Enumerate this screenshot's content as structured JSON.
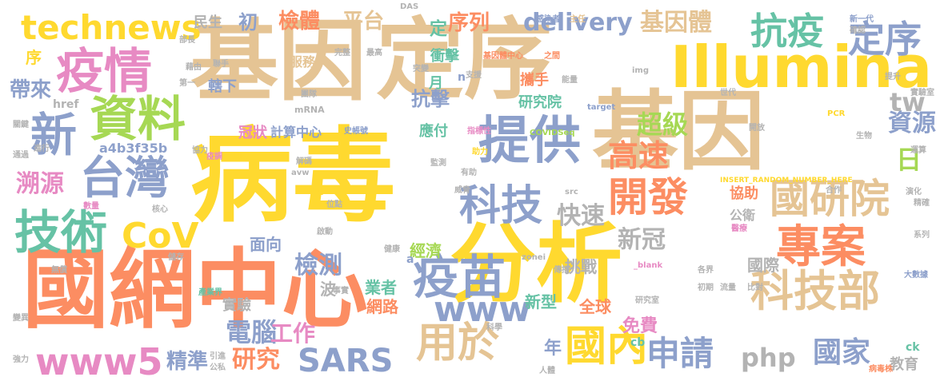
{
  "colors": {
    "tan": "#e5c494",
    "yellow": "#ffd92f",
    "orange": "#fc8d62",
    "blue": "#8da0cb",
    "green": "#66c2a5",
    "pink": "#e78ac3",
    "lime": "#a6d854",
    "gray": "#b3b3b3"
  },
  "words": [
    {
      "t": "病毒",
      "c": "yellow"
    },
    {
      "t": "基因",
      "c": "tan"
    },
    {
      "t": "定序",
      "c": "tan"
    },
    {
      "t": "基因",
      "c": "tan"
    },
    {
      "t": "國網中心",
      "c": "orange"
    },
    {
      "t": "分析",
      "c": "yellow"
    },
    {
      "t": "Illumina",
      "c": "yellow"
    },
    {
      "t": "疫情",
      "c": "pink"
    },
    {
      "t": "資料",
      "c": "lime"
    },
    {
      "t": "提供",
      "c": "blue"
    },
    {
      "t": "技術",
      "c": "green"
    },
    {
      "t": "台灣",
      "c": "blue"
    },
    {
      "t": "新",
      "c": "blue"
    },
    {
      "t": "疫苗",
      "c": "blue"
    },
    {
      "t": "專案",
      "c": "orange"
    },
    {
      "t": "科技部",
      "c": "tan"
    },
    {
      "t": "國研院",
      "c": "tan"
    },
    {
      "t": "開發",
      "c": "orange"
    },
    {
      "t": "科技",
      "c": "blue"
    },
    {
      "t": "用於",
      "c": "tan"
    },
    {
      "t": "國內",
      "c": "yellow"
    },
    {
      "t": "www5",
      "c": "pink"
    },
    {
      "t": "technews",
      "c": "yellow"
    },
    {
      "t": "抗疫",
      "c": "green"
    },
    {
      "t": "定序",
      "c": "blue"
    },
    {
      "t": "CoV",
      "c": "yellow"
    },
    {
      "t": "www",
      "c": "blue"
    },
    {
      "t": "SARS",
      "c": "blue"
    },
    {
      "t": "申請",
      "c": "blue"
    },
    {
      "t": "高速",
      "c": "orange"
    },
    {
      "t": "基因體",
      "c": "tan"
    },
    {
      "t": "delivery",
      "c": "blue"
    },
    {
      "t": "國家",
      "c": "blue"
    },
    {
      "t": "php",
      "c": "gray"
    },
    {
      "t": "檢測",
      "c": "blue"
    },
    {
      "t": "新冠",
      "c": "gray"
    },
    {
      "t": "快速",
      "c": "gray"
    },
    {
      "t": "電腦",
      "c": "blue"
    },
    {
      "t": "精準",
      "c": "blue"
    },
    {
      "t": "研究",
      "c": "orange"
    },
    {
      "t": "工作",
      "c": "pink"
    },
    {
      "t": "檢體",
      "c": "orange"
    },
    {
      "t": "平台",
      "c": "tan"
    },
    {
      "t": "超級",
      "c": "lime"
    },
    {
      "t": "資源",
      "c": "blue"
    },
    {
      "t": "溯源",
      "c": "pink"
    },
    {
      "t": "帶來",
      "c": "blue"
    },
    {
      "t": "序列",
      "c": "orange"
    },
    {
      "t": "初",
      "c": "blue"
    },
    {
      "t": "民生",
      "c": "gray"
    },
    {
      "t": "tw",
      "c": "gray"
    },
    {
      "t": "日",
      "c": "lime"
    },
    {
      "t": "抗擊",
      "c": "blue"
    },
    {
      "t": "研究院",
      "c": "green"
    },
    {
      "t": "國際",
      "c": "gray"
    },
    {
      "t": "面向",
      "c": "blue"
    },
    {
      "t": "挑戰",
      "c": "gray"
    },
    {
      "t": "新型",
      "c": "green"
    },
    {
      "t": "全球",
      "c": "orange"
    },
    {
      "t": "網路",
      "c": "orange"
    },
    {
      "t": "業者",
      "c": "green"
    },
    {
      "t": "經濟",
      "c": "lime"
    },
    {
      "t": "免費",
      "c": "pink"
    },
    {
      "t": "年",
      "c": "blue"
    },
    {
      "t": "實驗",
      "c": "gray"
    },
    {
      "t": "波",
      "c": "gray"
    },
    {
      "t": "協助",
      "c": "orange"
    },
    {
      "t": "公衛",
      "c": "gray"
    },
    {
      "t": "教育",
      "c": "gray"
    },
    {
      "t": "a4b3f35b",
      "c": "blue"
    },
    {
      "t": "冠狀",
      "c": "pink"
    },
    {
      "t": "計算中心",
      "c": "blue"
    },
    {
      "t": "應付",
      "c": "green"
    },
    {
      "t": "攜手",
      "c": "orange"
    },
    {
      "t": "衝擊",
      "c": "green"
    },
    {
      "t": "服務",
      "c": "tan"
    },
    {
      "t": "轄下",
      "c": "blue"
    },
    {
      "t": "月",
      "c": "green"
    },
    {
      "t": "定",
      "c": "green"
    },
    {
      "t": "序",
      "c": "yellow"
    },
    {
      "t": "n",
      "c": "blue"
    },
    {
      "t": "href",
      "c": "gray"
    },
    {
      "t": "amp",
      "c": "yellow"
    },
    {
      "t": "ck",
      "c": "green"
    },
    {
      "t": "cb",
      "c": "green"
    },
    {
      "t": "a",
      "c": "blue"
    },
    {
      "t": "mRNA",
      "c": "gray"
    },
    {
      "t": "COVIDSeq",
      "c": "lime"
    },
    {
      "t": "INSERT_RANDOM_NUMBER_HERE",
      "c": "yellow"
    },
    {
      "t": "target",
      "c": "blue"
    },
    {
      "t": "PCR",
      "c": "yellow"
    },
    {
      "t": "_blank",
      "c": "pink"
    },
    {
      "t": "img",
      "c": "gray"
    },
    {
      "t": "avw",
      "c": "gray"
    },
    {
      "t": "src",
      "c": "gray"
    },
    {
      "t": "zonei",
      "c": "gray"
    },
    {
      "t": "DAS",
      "c": "gray"
    },
    {
      "t": "史帳號",
      "c": "blue"
    },
    {
      "t": "指標性",
      "c": "pink"
    },
    {
      "t": "基因體中心",
      "c": "orange"
    },
    {
      "t": "之間",
      "c": "orange"
    },
    {
      "t": "感染者",
      "c": "blue"
    },
    {
      "t": "主任",
      "c": "tan"
    },
    {
      "t": "新一代",
      "c": "blue"
    },
    {
      "t": "確認",
      "c": "gray"
    },
    {
      "t": "大數據",
      "c": "blue"
    },
    {
      "t": "病毒株",
      "c": "orange"
    },
    {
      "t": "實驗室",
      "c": "gray"
    },
    {
      "t": "系列",
      "c": "gray"
    },
    {
      "t": "提升",
      "c": "gray"
    },
    {
      "t": "生物",
      "c": "gray"
    },
    {
      "t": "演化",
      "c": "gray"
    },
    {
      "t": "精確",
      "c": "gray"
    },
    {
      "t": "流量",
      "c": "gray"
    },
    {
      "t": "研究室",
      "c": "gray"
    },
    {
      "t": "合作",
      "c": "gray"
    },
    {
      "t": "醫療",
      "c": "pink"
    },
    {
      "t": "助力",
      "c": "yellow"
    },
    {
      "t": "有助",
      "c": "gray"
    },
    {
      "t": "解碼",
      "c": "gray"
    },
    {
      "t": "監測",
      "c": "gray"
    },
    {
      "t": "利器",
      "c": "yellow"
    },
    {
      "t": "疫調",
      "c": "pink"
    },
    {
      "t": "能量",
      "c": "gray"
    },
    {
      "t": "初期",
      "c": "gray"
    },
    {
      "t": "各界",
      "c": "gray"
    },
    {
      "t": "比對",
      "c": "gray"
    },
    {
      "t": "科學",
      "c": "gray"
    },
    {
      "t": "傳播",
      "c": "gray"
    },
    {
      "t": "產業界",
      "c": "green"
    },
    {
      "t": "健康",
      "c": "gray"
    },
    {
      "t": "啟動",
      "c": "gray"
    },
    {
      "t": "位點",
      "c": "gray"
    },
    {
      "t": "威脅",
      "c": "gray"
    },
    {
      "t": "事實",
      "c": "gray"
    },
    {
      "t": "數量",
      "c": "pink"
    },
    {
      "t": "核心",
      "c": "gray"
    },
    {
      "t": "強力",
      "c": "gray"
    },
    {
      "t": "公私",
      "c": "gray"
    },
    {
      "t": "引進",
      "c": "gray"
    },
    {
      "t": "變異",
      "c": "gray"
    },
    {
      "t": "無償",
      "c": "gray"
    },
    {
      "t": "儲存",
      "c": "gray"
    },
    {
      "t": "協力",
      "c": "gray"
    },
    {
      "t": "關鍵",
      "c": "gray"
    },
    {
      "t": "第一",
      "c": "gray"
    },
    {
      "t": "部長",
      "c": "gray"
    },
    {
      "t": "聯手",
      "c": "gray"
    },
    {
      "t": "完整",
      "c": "gray"
    },
    {
      "t": "最高",
      "c": "gray"
    },
    {
      "t": "突變",
      "c": "gray"
    },
    {
      "t": "支援",
      "c": "gray"
    },
    {
      "t": "世代",
      "c": "gray"
    },
    {
      "t": "開放",
      "c": "gray"
    },
    {
      "t": "團隊",
      "c": "gray"
    },
    {
      "t": "進行",
      "c": "gray"
    },
    {
      "t": "通過",
      "c": "gray"
    },
    {
      "t": "藉由",
      "c": "gray"
    },
    {
      "t": "運算",
      "c": "gray"
    },
    {
      "t": "人體",
      "c": "gray"
    }
  ]
}
